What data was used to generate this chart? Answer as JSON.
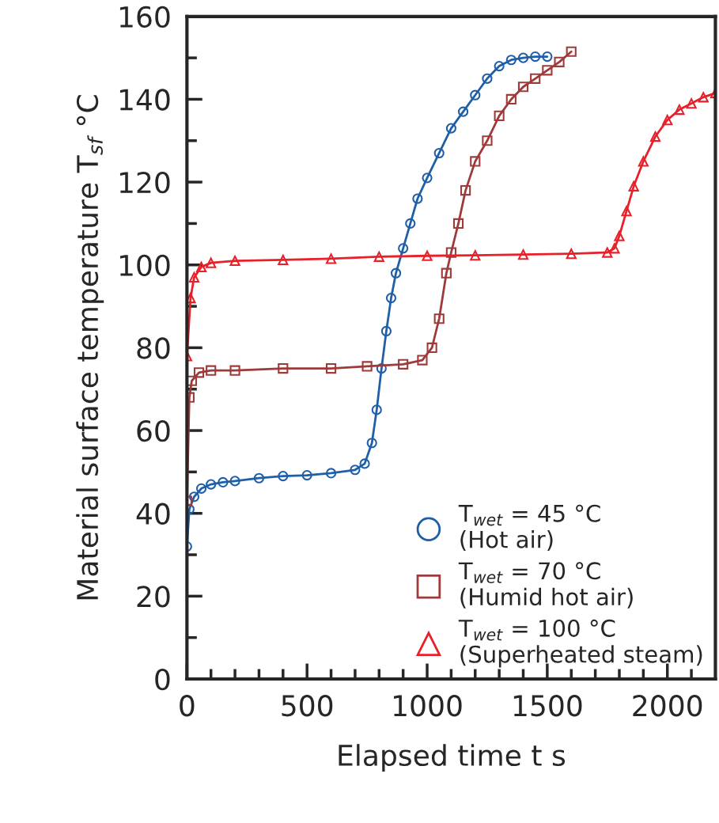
{
  "chart_data": {
    "type": "line",
    "xlabel": "Elapsed time t s",
    "ylabel": "Material surface temperature T$_{sf}$ °C",
    "xlim": [
      0,
      2200
    ],
    "ylim": [
      0,
      160
    ],
    "xticks": [
      0,
      {
        "value": 100,
        "label": null
      },
      {
        "value": 200,
        "label": null
      },
      {
        "value": 300,
        "label": null
      },
      {
        "value": 400,
        "label": null
      },
      500,
      {
        "value": 600,
        "label": null
      },
      {
        "value": 700,
        "label": null
      },
      {
        "value": 800,
        "label": null
      },
      {
        "value": 900,
        "label": null
      },
      1000,
      {
        "value": 1100,
        "label": null
      },
      {
        "value": 1200,
        "label": null
      },
      {
        "value": 1300,
        "label": null
      },
      {
        "value": 1400,
        "label": null
      },
      1500,
      {
        "value": 1600,
        "label": null
      },
      {
        "value": 1700,
        "label": null
      },
      {
        "value": 1800,
        "label": null
      },
      {
        "value": 1900,
        "label": null
      },
      2000,
      {
        "value": 2100,
        "label": null
      }
    ],
    "yticks": [
      0,
      {
        "value": 10,
        "label": null
      },
      20,
      {
        "value": 30,
        "label": null
      },
      40,
      {
        "value": 50,
        "label": null
      },
      60,
      {
        "value": 70,
        "label": null
      },
      80,
      {
        "value": 90,
        "label": null
      },
      100,
      {
        "value": 110,
        "label": null
      },
      120,
      {
        "value": 130,
        "label": null
      },
      140,
      {
        "value": 150,
        "label": null
      },
      160
    ],
    "grid": false,
    "legend": "bottom right",
    "line_style": "solid",
    "series": [
      {
        "name": "T$_{wet}$ = 45 °C\n(Hot air)",
        "color": "#1f5fa8",
        "marker": "circle",
        "x": [
          0,
          10,
          30,
          60,
          100,
          150,
          200,
          300,
          400,
          500,
          600,
          700,
          740,
          770,
          790,
          810,
          830,
          850,
          870,
          900,
          930,
          960,
          1000,
          1050,
          1100,
          1150,
          1200,
          1250,
          1300,
          1350,
          1400,
          1450,
          1500
        ],
        "values": [
          32,
          41,
          44,
          46,
          47,
          47.5,
          47.8,
          48.5,
          49,
          49.2,
          49.7,
          50.5,
          52,
          57,
          65,
          75,
          84,
          92,
          98,
          104,
          110,
          116,
          121,
          127,
          133,
          137,
          141,
          145,
          148,
          149.5,
          150,
          150.3,
          150.3
        ]
      },
      {
        "name": "T$_{wet}$ = 70 °C\n(Humid hot air)",
        "color": "#9e3a3a",
        "marker": "square",
        "x": [
          0,
          10,
          20,
          50,
          100,
          200,
          400,
          600,
          750,
          900,
          980,
          1020,
          1050,
          1080,
          1100,
          1130,
          1160,
          1200,
          1250,
          1300,
          1350,
          1400,
          1450,
          1500,
          1550,
          1600
        ],
        "values": [
          43,
          68,
          72,
          74,
          74.5,
          74.5,
          75,
          75,
          75.5,
          76,
          77,
          80,
          87,
          98,
          103,
          110,
          118,
          125,
          130,
          136,
          140,
          143,
          145,
          147,
          149,
          151.5
        ]
      },
      {
        "name": "T$_{wet}$ = 100 °C\n(Superheated steam)",
        "color": "#e8202a",
        "marker": "triangle",
        "x": [
          0,
          15,
          30,
          60,
          100,
          200,
          400,
          600,
          800,
          1000,
          1200,
          1400,
          1600,
          1750,
          1780,
          1800,
          1830,
          1860,
          1900,
          1950,
          2000,
          2050,
          2100,
          2150,
          2200
        ],
        "values": [
          78,
          92,
          97,
          99.5,
          100.5,
          101,
          101.2,
          101.5,
          102,
          102.2,
          102.3,
          102.5,
          102.7,
          103,
          104,
          107,
          113,
          119,
          125,
          131,
          135,
          137.5,
          139,
          140.5,
          141.5
        ]
      }
    ]
  }
}
